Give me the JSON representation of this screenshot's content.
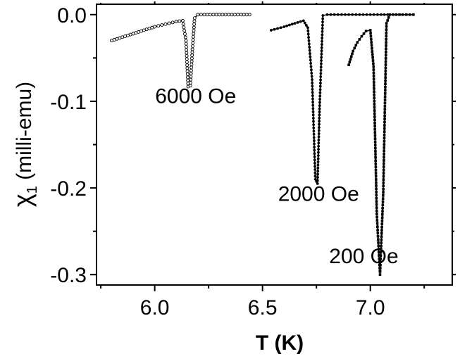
{
  "chart_data": {
    "type": "line",
    "title": "",
    "xlabel": "T (K)",
    "ylabel_main": "χ",
    "ylabel_sub": "1",
    "ylabel_rest": " (milli-emu)",
    "xlim": [
      5.73,
      7.38
    ],
    "ylim": [
      -0.312,
      0.012
    ],
    "xticks": [
      6.0,
      6.5,
      7.0
    ],
    "xtick_labels": [
      "6.0",
      "6.5",
      "7.0"
    ],
    "yticks": [
      0.0,
      -0.1,
      -0.2,
      -0.3
    ],
    "ytick_labels": [
      "0.0",
      "-0.1",
      "-0.2",
      "-0.3"
    ],
    "grid": false,
    "legend": "none",
    "series": [
      {
        "name": "6000 Oe",
        "marker": "open-circle",
        "x": [
          5.8,
          5.85,
          5.9,
          5.95,
          6.0,
          6.05,
          6.1,
          6.13,
          6.145,
          6.155,
          6.165,
          6.175,
          6.185,
          6.2,
          6.23,
          6.3,
          6.4,
          6.44
        ],
        "y": [
          -0.03,
          -0.026,
          -0.022,
          -0.018,
          -0.014,
          -0.011,
          -0.008,
          -0.007,
          -0.03,
          -0.083,
          -0.082,
          -0.04,
          -0.004,
          0.0,
          0.0,
          0.0,
          0.0,
          0.0
        ]
      },
      {
        "name": "2000 Oe",
        "marker": "filled-circle",
        "x": [
          6.54,
          6.6,
          6.65,
          6.69,
          6.71,
          6.73,
          6.745,
          6.755,
          6.765,
          6.78,
          6.8,
          6.85,
          6.9,
          6.95,
          7.0,
          7.05,
          7.08
        ],
        "y": [
          -0.018,
          -0.014,
          -0.01,
          -0.007,
          -0.015,
          -0.075,
          -0.19,
          -0.195,
          -0.105,
          -0.001,
          0.0,
          0.0,
          0.0,
          0.0,
          0.0,
          0.0,
          0.0
        ]
      },
      {
        "name": "200 Oe",
        "marker": "filled-square",
        "x": [
          6.9,
          6.92,
          6.94,
          6.96,
          6.98,
          7.0,
          7.015,
          7.03,
          7.045,
          7.06,
          7.075,
          7.09,
          7.12,
          7.15,
          7.2
        ],
        "y": [
          -0.058,
          -0.042,
          -0.032,
          -0.025,
          -0.019,
          -0.018,
          -0.06,
          -0.23,
          -0.3,
          -0.205,
          -0.01,
          0.0,
          0.0,
          0.0,
          0.0
        ]
      }
    ],
    "annotations": [
      {
        "text": "6000 Oe",
        "x": 6.19,
        "y": -0.102
      },
      {
        "text": "2000 Oe",
        "x": 6.76,
        "y": -0.215
      },
      {
        "text": "200 Oe",
        "x": 6.97,
        "y": -0.287
      }
    ]
  }
}
